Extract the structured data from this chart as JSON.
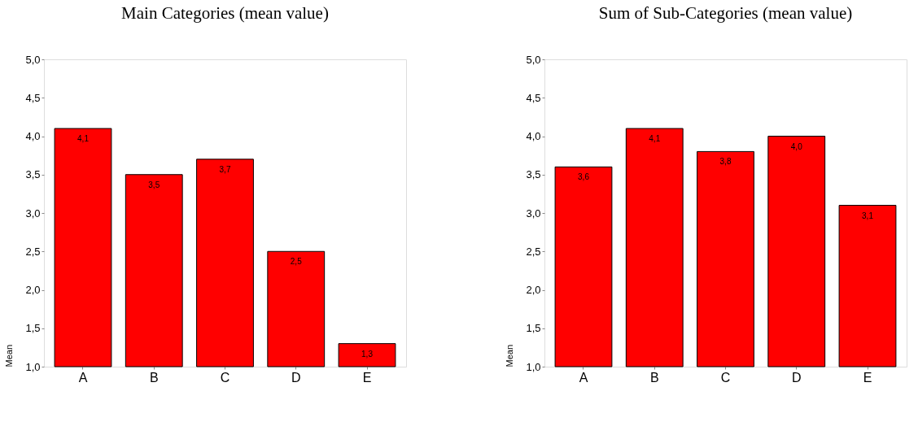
{
  "chart_data": [
    {
      "type": "bar",
      "title": "Main Categories (mean value)",
      "ylabel": "Mean",
      "categories": [
        "A",
        "B",
        "C",
        "D",
        "E"
      ],
      "values": [
        4.1,
        3.5,
        3.7,
        2.5,
        1.3
      ],
      "value_labels": [
        "4,1",
        "3,5",
        "3,7",
        "2,5",
        "1,3"
      ],
      "color": "#ff0000",
      "ylim": [
        1,
        5
      ],
      "yticks": [
        {
          "value": 1,
          "label": "1,0"
        },
        {
          "value": 1.5,
          "label": "1,5"
        },
        {
          "value": 2,
          "label": "2,0"
        },
        {
          "value": 2.5,
          "label": "2,5"
        },
        {
          "value": 3,
          "label": "3,0"
        },
        {
          "value": 3.5,
          "label": "3,5"
        },
        {
          "value": 4,
          "label": "4,0"
        },
        {
          "value": 4.5,
          "label": "4,5"
        },
        {
          "value": 5,
          "label": "5,0"
        }
      ],
      "grid": false
    },
    {
      "type": "bar",
      "title": "Sum of Sub-Categories (mean value)",
      "ylabel": "Mean",
      "categories": [
        "A",
        "B",
        "C",
        "D",
        "E"
      ],
      "values": [
        3.6,
        4.1,
        3.8,
        4.0,
        3.1
      ],
      "value_labels": [
        "3,6",
        "4,1",
        "3,8",
        "4,0",
        "3,1"
      ],
      "color": "#ff0000",
      "ylim": [
        1,
        5
      ],
      "yticks": [
        {
          "value": 1,
          "label": "1,0"
        },
        {
          "value": 1.5,
          "label": "1,5"
        },
        {
          "value": 2,
          "label": "2,0"
        },
        {
          "value": 2.5,
          "label": "2,5"
        },
        {
          "value": 3,
          "label": "3,0"
        },
        {
          "value": 3.5,
          "label": "3,5"
        },
        {
          "value": 4,
          "label": "4,0"
        },
        {
          "value": 4.5,
          "label": "4,5"
        },
        {
          "value": 5,
          "label": "5,0"
        }
      ],
      "grid": false
    }
  ]
}
